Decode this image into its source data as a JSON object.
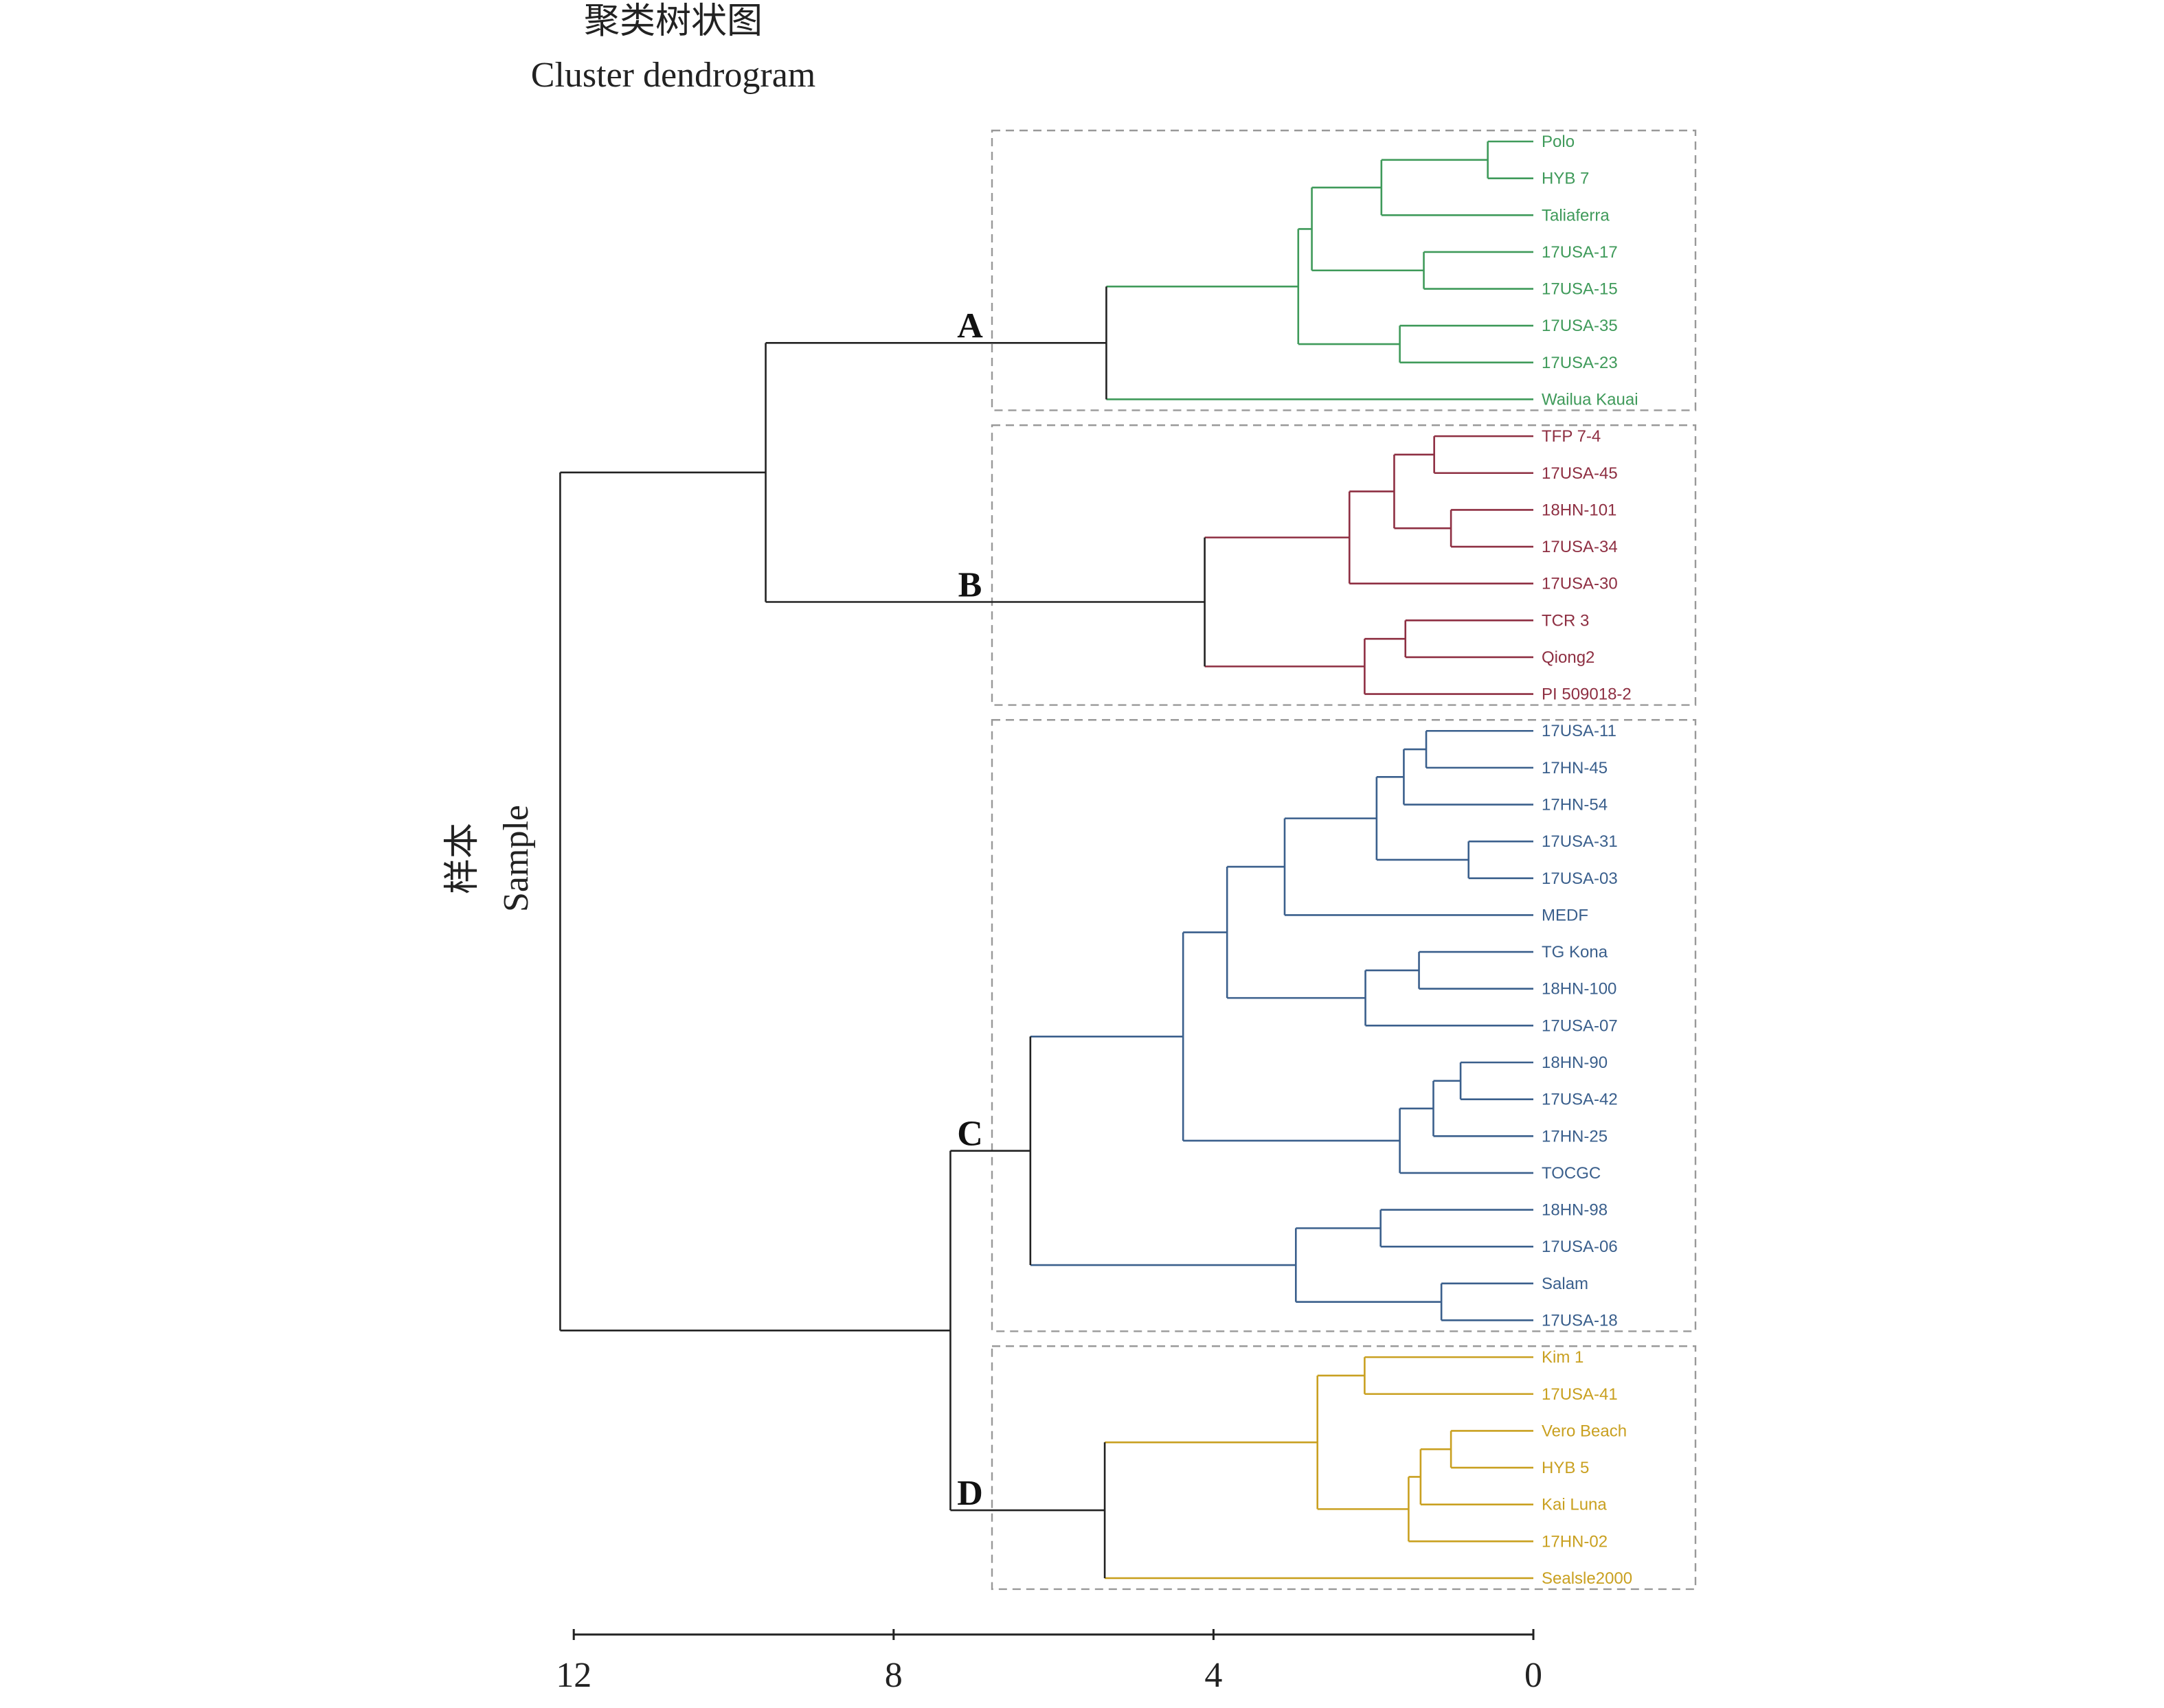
{
  "chart_data": {
    "type": "dendrogram",
    "title_zh": "聚类树状图",
    "title": "Cluster dendrogram",
    "ylabel_zh": "样本",
    "ylabel": "Sample",
    "xlim": [
      12,
      0
    ],
    "xticks": [
      "12",
      "8",
      "4",
      "0"
    ],
    "root_color": "#222222",
    "tree": {
      "height": 12.17,
      "children": [
        {
          "height": 9.6,
          "children": [
            {
              "cluster": "A",
              "color": "#3f9a5a",
              "height": 5.34,
              "children": [
                {
                  "height": 2.94,
                  "children": [
                    {
                      "height": 2.77,
                      "children": [
                        {
                          "height": 1.9,
                          "children": [
                            {
                              "height": 0.57,
                              "children": [
                                "Polo",
                                "HYB 7"
                              ]
                            },
                            "Taliaferra"
                          ]
                        },
                        {
                          "height": 1.37,
                          "children": [
                            "17USA-17",
                            "17USA-15"
                          ]
                        }
                      ]
                    },
                    {
                      "height": 1.67,
                      "children": [
                        "17USA-35",
                        "17USA-23"
                      ]
                    }
                  ]
                },
                "Wailua Kauai"
              ]
            },
            {
              "cluster": "B",
              "color": "#8e2f42",
              "height": 4.11,
              "children": [
                {
                  "height": 2.3,
                  "children": [
                    {
                      "height": 1.74,
                      "children": [
                        {
                          "height": 1.24,
                          "children": [
                            "TFP 7-4",
                            "17USA-45"
                          ]
                        },
                        {
                          "height": 1.03,
                          "children": [
                            "18HN-101",
                            "17USA-34"
                          ]
                        }
                      ]
                    },
                    "17USA-30"
                  ]
                },
                {
                  "height": 2.11,
                  "children": [
                    {
                      "height": 1.6,
                      "children": [
                        "TCR 3",
                        "Qiong2"
                      ]
                    },
                    "PI 509018-2"
                  ]
                }
              ]
            }
          ]
        },
        {
          "height": 7.29,
          "children": [
            {
              "cluster": "C",
              "color": "#3a5f8c",
              "height": 6.29,
              "children": [
                {
                  "height": 4.38,
                  "children": [
                    {
                      "height": 3.83,
                      "children": [
                        {
                          "height": 3.11,
                          "children": [
                            {
                              "height": 1.96,
                              "children": [
                                {
                                  "height": 1.62,
                                  "children": [
                                    {
                                      "height": 1.34,
                                      "children": [
                                        "17USA-11",
                                        "17HN-45"
                                      ]
                                    },
                                    "17HN-54"
                                  ]
                                },
                                {
                                  "height": 0.81,
                                  "children": [
                                    "17USA-31",
                                    "17USA-03"
                                  ]
                                }
                              ]
                            },
                            "MEDF"
                          ]
                        },
                        {
                          "height": 2.1,
                          "children": [
                            {
                              "height": 1.43,
                              "children": [
                                "TG Kona",
                                "18HN-100"
                              ]
                            },
                            "17USA-07"
                          ]
                        }
                      ]
                    },
                    {
                      "height": 1.67,
                      "children": [
                        {
                          "height": 1.25,
                          "children": [
                            {
                              "height": 0.91,
                              "children": [
                                "18HN-90",
                                "17USA-42"
                              ]
                            },
                            "17HN-25"
                          ]
                        },
                        "TOCGC"
                      ]
                    }
                  ]
                },
                {
                  "height": 2.97,
                  "children": [
                    {
                      "height": 1.91,
                      "children": [
                        "18HN-98",
                        "17USA-06"
                      ]
                    },
                    {
                      "height": 1.15,
                      "children": [
                        "Salam",
                        "17USA-18"
                      ]
                    }
                  ]
                }
              ]
            },
            {
              "cluster": "D",
              "color": "#c9a020",
              "height": 5.36,
              "children": [
                {
                  "height": 2.7,
                  "children": [
                    {
                      "height": 2.11,
                      "children": [
                        "Kim 1",
                        "17USA-41"
                      ]
                    },
                    {
                      "height": 1.56,
                      "children": [
                        {
                          "height": 1.41,
                          "children": [
                            {
                              "height": 1.03,
                              "children": [
                                "Vero Beach",
                                "HYB 5"
                              ]
                            },
                            "Kai Luna"
                          ]
                        },
                        "17HN-02"
                      ]
                    }
                  ]
                },
                "Sealsle2000"
              ]
            }
          ]
        }
      ]
    }
  }
}
